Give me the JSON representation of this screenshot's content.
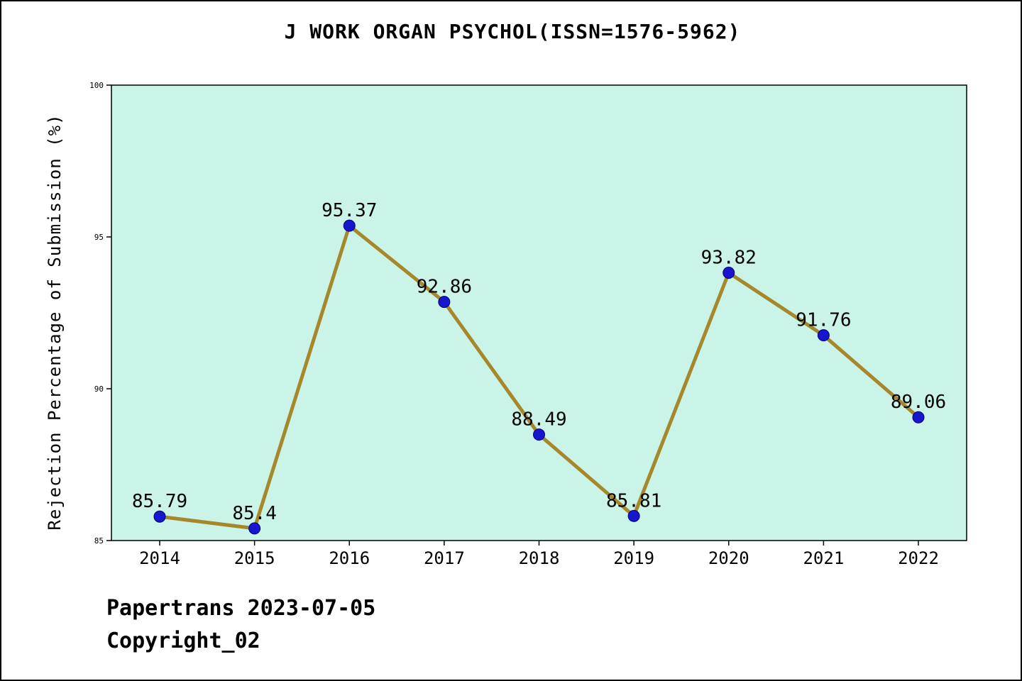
{
  "footer": {
    "line1": "Papertrans 2023-07-05",
    "line2": "Copyright_02"
  },
  "chart_data": {
    "type": "line",
    "title": "J WORK ORGAN PSYCHOL(ISSN=1576-5962)",
    "categories": [
      "2014",
      "2015",
      "2016",
      "2017",
      "2018",
      "2019",
      "2020",
      "2021",
      "2022"
    ],
    "values": [
      85.79,
      85.4,
      95.37,
      92.86,
      88.49,
      85.81,
      93.82,
      91.76,
      89.06
    ],
    "point_labels": [
      "85.79",
      "85.4",
      "95.37",
      "92.86",
      "88.49",
      "85.81",
      "93.82",
      "91.76",
      "89.06"
    ],
    "xlabel": "",
    "ylabel": "Rejection Percentage of Submission (%)",
    "ylim": [
      85,
      100
    ],
    "yticks": [
      85,
      90,
      95,
      100
    ],
    "grid": false,
    "legend": "none",
    "line_color": "#a6882b",
    "marker_color": "#1616cd",
    "marker_edge_color": "#000080",
    "plot_bg_color": "#c9f4e7",
    "axis_color": "#000000"
  }
}
